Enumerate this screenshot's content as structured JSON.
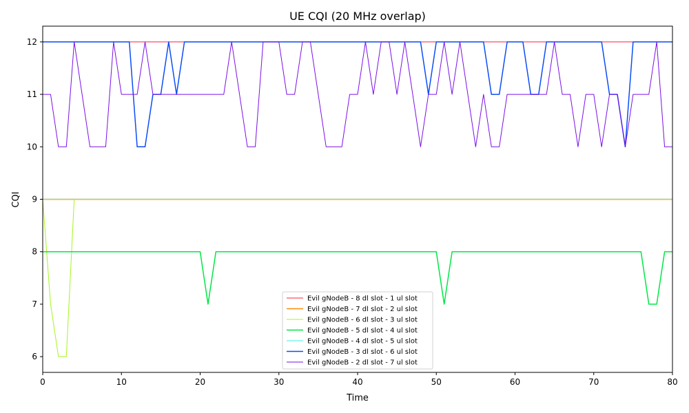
{
  "chart_data": {
    "type": "line",
    "title": "UE CQI (20 MHz overlap)",
    "xlabel": "Time",
    "ylabel": "CQI",
    "xlim": [
      0,
      80
    ],
    "ylim": [
      5.7,
      12.3
    ],
    "xticks": [
      0,
      10,
      20,
      30,
      40,
      50,
      60,
      70,
      80
    ],
    "yticks": [
      6,
      7,
      8,
      9,
      10,
      11,
      12
    ],
    "grid": false,
    "legend_position": "lower-center",
    "series": [
      {
        "name": "Evil gNodeB - 8 dl slot - 1 ul slot",
        "color": "#ff1f3d",
        "width": 1,
        "points": [
          [
            0,
            12
          ],
          [
            80,
            12
          ]
        ]
      },
      {
        "name": "Evil gNodeB - 7 dl slot - 2 ul slot",
        "color": "#ff8c00",
        "width": 1.5,
        "points": [
          [
            0,
            9
          ],
          [
            80,
            9
          ]
        ]
      },
      {
        "name": "Evil gNodeB - 6 dl slot - 3 ul slot",
        "color": "#a4f51c",
        "width": 1,
        "points": [
          [
            0,
            9
          ],
          [
            1,
            7
          ],
          [
            2,
            6
          ],
          [
            3,
            6
          ],
          [
            4,
            9
          ],
          [
            80,
            9
          ]
        ]
      },
      {
        "name": "Evil gNodeB - 5 dl slot - 4 ul slot",
        "color": "#00e645",
        "width": 1.5,
        "points": [
          [
            0,
            8
          ],
          [
            20,
            8
          ],
          [
            21,
            7
          ],
          [
            22,
            8
          ],
          [
            50,
            8
          ],
          [
            51,
            7
          ],
          [
            52,
            8
          ],
          [
            76,
            8
          ],
          [
            77,
            7
          ],
          [
            78,
            7
          ],
          [
            79,
            8
          ],
          [
            80,
            8
          ]
        ]
      },
      {
        "name": "Evil gNodeB - 4 dl slot - 5 ul slot",
        "color": "#3df0e6",
        "width": 1,
        "points": [
          [
            0,
            9
          ],
          [
            80,
            9
          ]
        ]
      },
      {
        "name": "Evil gNodeB - 3 dl slot - 6 ul slot",
        "color": "#0a4df5",
        "width": 1.5,
        "points": [
          [
            0,
            12
          ],
          [
            11,
            12
          ],
          [
            12,
            10
          ],
          [
            13,
            10
          ],
          [
            14,
            11
          ],
          [
            15,
            11
          ],
          [
            16,
            12
          ],
          [
            17,
            11
          ],
          [
            18,
            12
          ],
          [
            48,
            12
          ],
          [
            49,
            11
          ],
          [
            50,
            12
          ],
          [
            56,
            12
          ],
          [
            57,
            11
          ],
          [
            58,
            11
          ],
          [
            59,
            12
          ],
          [
            61,
            12
          ],
          [
            62,
            11
          ],
          [
            63,
            11
          ],
          [
            64,
            12
          ],
          [
            71,
            12
          ],
          [
            72,
            11
          ],
          [
            73,
            11
          ],
          [
            74,
            10
          ],
          [
            75,
            12
          ],
          [
            80,
            12
          ]
        ]
      },
      {
        "name": "Evil gNodeB - 2 dl slot - 7 ul slot",
        "color": "#7a0ee6",
        "width": 1,
        "points": [
          [
            0,
            11
          ],
          [
            1,
            11
          ],
          [
            2,
            10
          ],
          [
            3,
            10
          ],
          [
            4,
            12
          ],
          [
            5,
            11
          ],
          [
            6,
            10
          ],
          [
            7,
            10
          ],
          [
            8,
            10
          ],
          [
            9,
            12
          ],
          [
            10,
            11
          ],
          [
            11,
            11
          ],
          [
            12,
            11
          ],
          [
            13,
            12
          ],
          [
            14,
            11
          ],
          [
            15,
            11
          ],
          [
            16,
            11
          ],
          [
            17,
            11
          ],
          [
            18,
            11
          ],
          [
            19,
            11
          ],
          [
            20,
            11
          ],
          [
            21,
            11
          ],
          [
            22,
            11
          ],
          [
            23,
            11
          ],
          [
            24,
            12
          ],
          [
            25,
            11
          ],
          [
            26,
            10
          ],
          [
            27,
            10
          ],
          [
            28,
            12
          ],
          [
            29,
            12
          ],
          [
            30,
            12
          ],
          [
            31,
            11
          ],
          [
            32,
            11
          ],
          [
            33,
            12
          ],
          [
            34,
            12
          ],
          [
            35,
            11
          ],
          [
            36,
            10
          ],
          [
            37,
            10
          ],
          [
            38,
            10
          ],
          [
            39,
            11
          ],
          [
            40,
            11
          ],
          [
            41,
            12
          ],
          [
            42,
            11
          ],
          [
            43,
            12
          ],
          [
            44,
            12
          ],
          [
            45,
            11
          ],
          [
            46,
            12
          ],
          [
            47,
            11
          ],
          [
            48,
            10
          ],
          [
            49,
            11
          ],
          [
            50,
            11
          ],
          [
            51,
            12
          ],
          [
            52,
            11
          ],
          [
            53,
            12
          ],
          [
            54,
            11
          ],
          [
            55,
            10
          ],
          [
            56,
            11
          ],
          [
            57,
            10
          ],
          [
            58,
            10
          ],
          [
            59,
            11
          ],
          [
            60,
            11
          ],
          [
            61,
            11
          ],
          [
            62,
            11
          ],
          [
            63,
            11
          ],
          [
            64,
            11
          ],
          [
            65,
            12
          ],
          [
            66,
            11
          ],
          [
            67,
            11
          ],
          [
            68,
            10
          ],
          [
            69,
            11
          ],
          [
            70,
            11
          ],
          [
            71,
            10
          ],
          [
            72,
            11
          ],
          [
            73,
            11
          ],
          [
            74,
            10
          ],
          [
            75,
            11
          ],
          [
            76,
            11
          ],
          [
            77,
            11
          ],
          [
            78,
            12
          ],
          [
            79,
            10
          ],
          [
            80,
            10
          ]
        ]
      }
    ]
  }
}
